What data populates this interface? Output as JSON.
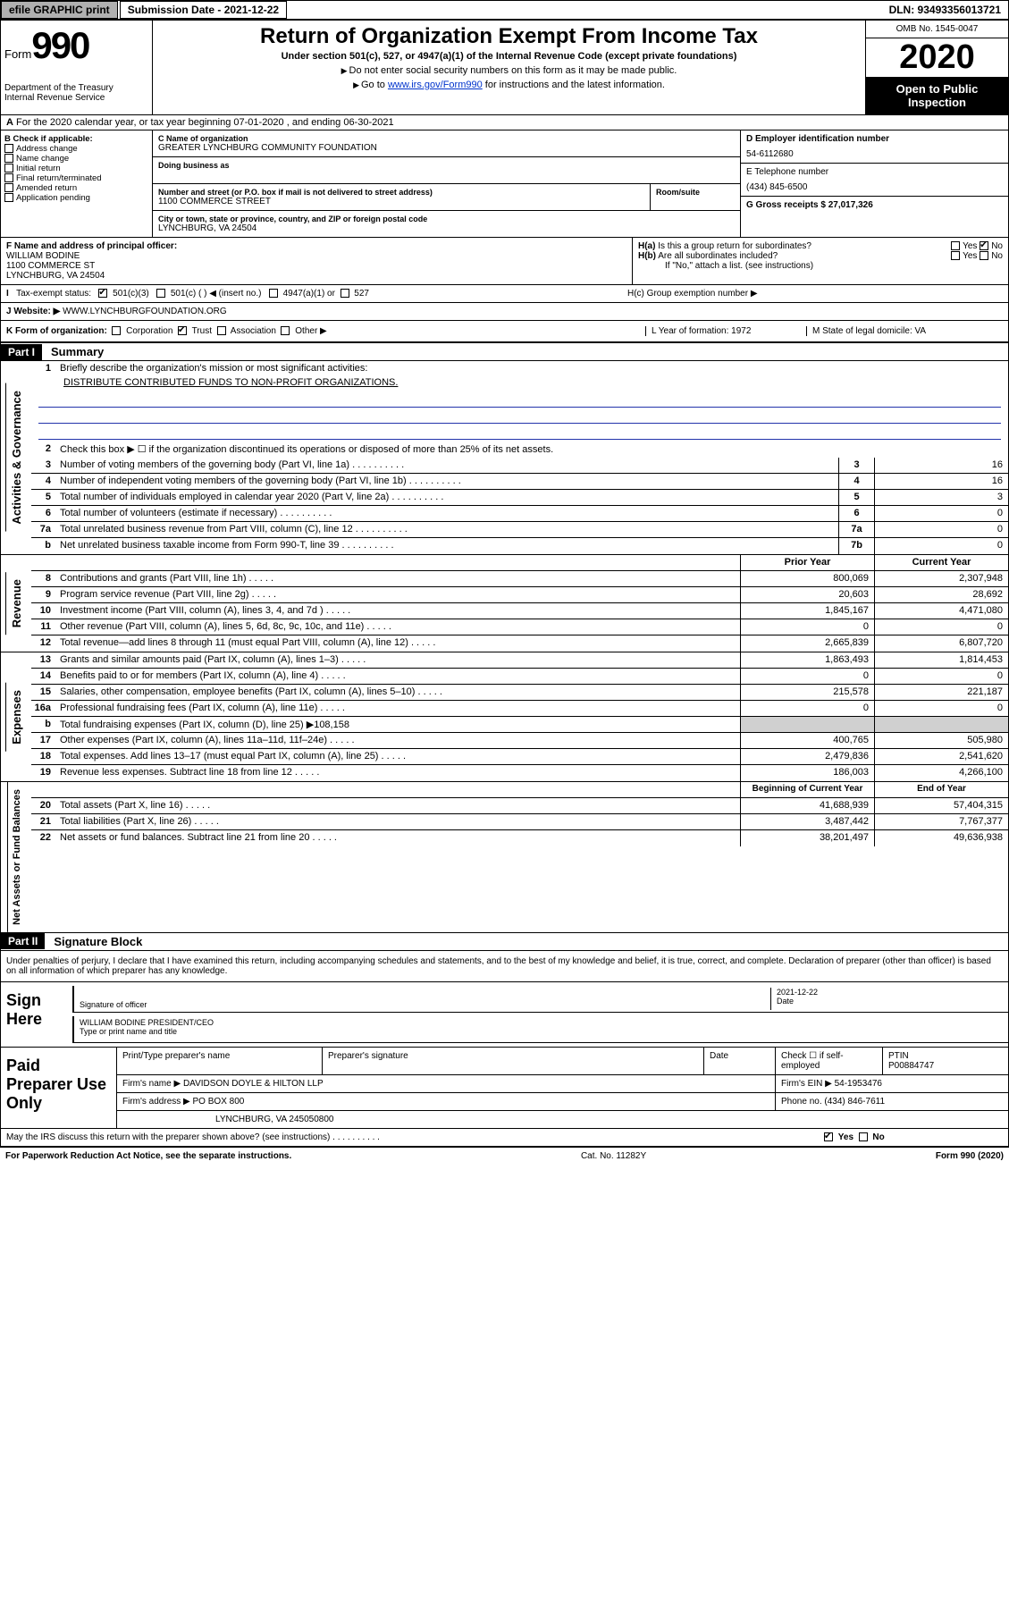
{
  "topbar": {
    "efile": "efile GRAPHIC print",
    "sub_label": "Submission Date - 2021-12-22",
    "dln": "DLN: 93493356013721"
  },
  "header": {
    "form": "Form",
    "num": "990",
    "title": "Return of Organization Exempt From Income Tax",
    "sub1": "Under section 501(c), 527, or 4947(a)(1) of the Internal Revenue Code (except private foundations)",
    "sub2": "Do not enter social security numbers on this form as it may be made public.",
    "sub3": "Go to www.irs.gov/Form990 for instructions and the latest information.",
    "link": "www.irs.gov/Form990",
    "omb": "OMB No. 1545-0047",
    "year": "2020",
    "open": "Open to Public Inspection",
    "dept1": "Department of the Treasury",
    "dept2": "Internal Revenue Service"
  },
  "rowA": {
    "text": "For the 2020 calendar year, or tax year beginning 07-01-2020     , and ending 06-30-2021",
    "prefix": "A"
  },
  "colB": {
    "hdr": "B Check if applicable:",
    "items": [
      "Address change",
      "Name change",
      "Initial return",
      "Final return/terminated",
      "Amended return",
      "Application pending"
    ]
  },
  "colC": {
    "name_label": "C Name of organization",
    "name": "GREATER LYNCHBURG COMMUNITY FOUNDATION",
    "dba_label": "Doing business as",
    "street_label": "Number and street (or P.O. box if mail is not delivered to street address)",
    "room_label": "Room/suite",
    "street": "1100 COMMERCE STREET",
    "city_label": "City or town, state or province, country, and ZIP or foreign postal code",
    "city": "LYNCHBURG, VA  24504"
  },
  "colD": {
    "d_label": "D Employer identification number",
    "ein": "54-6112680",
    "e_label": "E Telephone number",
    "phone": "(434) 845-6500",
    "g_label": "G Gross receipts $ 27,017,326"
  },
  "rowF": {
    "f_label": "F  Name and address of principal officer:",
    "f_name": "WILLIAM BODINE",
    "f_addr1": "1100 COMMERCE ST",
    "f_addr2": "LYNCHBURG, VA  24504",
    "h_a": "H(a)  Is this a group return for subordinates?",
    "h_b": "H(b)  Are all subordinates included?",
    "h_note": "If \"No,\" attach a list. (see instructions)",
    "yes": "Yes",
    "no": "No"
  },
  "rowI": {
    "label": "I   Tax-exempt status:",
    "opt1": "501(c)(3)",
    "opt2": "501(c) (   ) ◀ (insert no.)",
    "opt3": "4947(a)(1) or",
    "opt4": "527",
    "hc": "H(c)   Group exemption number ▶"
  },
  "rowJ": {
    "label": "J    Website: ▶",
    "site": "WWW.LYNCHBURGFOUNDATION.ORG"
  },
  "rowK": {
    "k_label": "K Form of organization:",
    "opts": [
      "Corporation",
      "Trust",
      "Association",
      "Other ▶"
    ],
    "l": "L Year of formation: 1972",
    "m": "M State of legal domicile: VA"
  },
  "part1": {
    "hdr": "Part I",
    "label": "Summary",
    "vlabel_gov": "Activities & Governance",
    "vlabel_rev": "Revenue",
    "vlabel_exp": "Expenses",
    "vlabel_net": "Net Assets or Fund Balances",
    "line1": "Briefly describe the organization's mission or most significant activities:",
    "mission": "DISTRIBUTE CONTRIBUTED FUNDS TO NON-PROFIT ORGANIZATIONS.",
    "line2": "Check this box ▶ ☐  if the organization discontinued its operations or disposed of more than 25% of its net assets.",
    "lines_gov": [
      {
        "n": "3",
        "t": "Number of voting members of the governing body (Part VI, line 1a)",
        "b": "3",
        "v": "16"
      },
      {
        "n": "4",
        "t": "Number of independent voting members of the governing body (Part VI, line 1b)",
        "b": "4",
        "v": "16"
      },
      {
        "n": "5",
        "t": "Total number of individuals employed in calendar year 2020 (Part V, line 2a)",
        "b": "5",
        "v": "3"
      },
      {
        "n": "6",
        "t": "Total number of volunteers (estimate if necessary)",
        "b": "6",
        "v": "0"
      },
      {
        "n": "7a",
        "t": "Total unrelated business revenue from Part VIII, column (C), line 12",
        "b": "7a",
        "v": "0"
      },
      {
        "n": "b",
        "t": "Net unrelated business taxable income from Form 990-T, line 39",
        "b": "7b",
        "v": "0"
      }
    ],
    "col_prior": "Prior Year",
    "col_current": "Current Year",
    "lines_rev": [
      {
        "n": "8",
        "t": "Contributions and grants (Part VIII, line 1h)",
        "p": "800,069",
        "c": "2,307,948"
      },
      {
        "n": "9",
        "t": "Program service revenue (Part VIII, line 2g)",
        "p": "20,603",
        "c": "28,692"
      },
      {
        "n": "10",
        "t": "Investment income (Part VIII, column (A), lines 3, 4, and 7d )",
        "p": "1,845,167",
        "c": "4,471,080"
      },
      {
        "n": "11",
        "t": "Other revenue (Part VIII, column (A), lines 5, 6d, 8c, 9c, 10c, and 11e)",
        "p": "0",
        "c": "0"
      },
      {
        "n": "12",
        "t": "Total revenue—add lines 8 through 11 (must equal Part VIII, column (A), line 12)",
        "p": "2,665,839",
        "c": "6,807,720"
      }
    ],
    "lines_exp": [
      {
        "n": "13",
        "t": "Grants and similar amounts paid (Part IX, column (A), lines 1–3)",
        "p": "1,863,493",
        "c": "1,814,453"
      },
      {
        "n": "14",
        "t": "Benefits paid to or for members (Part IX, column (A), line 4)",
        "p": "0",
        "c": "0"
      },
      {
        "n": "15",
        "t": "Salaries, other compensation, employee benefits (Part IX, column (A), lines 5–10)",
        "p": "215,578",
        "c": "221,187"
      },
      {
        "n": "16a",
        "t": "Professional fundraising fees (Part IX, column (A), line 11e)",
        "p": "0",
        "c": "0"
      },
      {
        "n": "b",
        "t": "Total fundraising expenses (Part IX, column (D), line 25) ▶108,158",
        "p": "",
        "c": "",
        "grey": true
      },
      {
        "n": "17",
        "t": "Other expenses (Part IX, column (A), lines 11a–11d, 11f–24e)",
        "p": "400,765",
        "c": "505,980"
      },
      {
        "n": "18",
        "t": "Total expenses. Add lines 13–17 (must equal Part IX, column (A), line 25)",
        "p": "2,479,836",
        "c": "2,541,620"
      },
      {
        "n": "19",
        "t": "Revenue less expenses. Subtract line 18 from line 12",
        "p": "186,003",
        "c": "4,266,100"
      }
    ],
    "col_begin": "Beginning of Current Year",
    "col_end": "End of Year",
    "lines_net": [
      {
        "n": "20",
        "t": "Total assets (Part X, line 16)",
        "p": "41,688,939",
        "c": "57,404,315"
      },
      {
        "n": "21",
        "t": "Total liabilities (Part X, line 26)",
        "p": "3,487,442",
        "c": "7,767,377"
      },
      {
        "n": "22",
        "t": "Net assets or fund balances. Subtract line 21 from line 20",
        "p": "38,201,497",
        "c": "49,636,938"
      }
    ]
  },
  "part2": {
    "hdr": "Part II",
    "label": "Signature Block",
    "decl": "Under penalties of perjury, I declare that I have examined this return, including accompanying schedules and statements, and to the best of my knowledge and belief, it is true, correct, and complete. Declaration of preparer (other than officer) is based on all information of which preparer has any knowledge."
  },
  "sign": {
    "here": "Sign Here",
    "sig_label": "Signature of officer",
    "date_label": "Date",
    "date": "2021-12-22",
    "name": "WILLIAM BODINE  PRESIDENT/CEO",
    "name_label": "Type or print name and title"
  },
  "paid": {
    "label": "Paid Preparer Use Only",
    "r1": {
      "c1": "Print/Type preparer's name",
      "c2": "Preparer's signature",
      "c3": "Date",
      "c4": "Check ☐ if self-employed",
      "c5": "PTIN",
      "c5v": "P00884747"
    },
    "r2": {
      "c1": "Firm's name    ▶",
      "c1v": "DAVIDSON DOYLE & HILTON LLP",
      "c2": "Firm's EIN ▶ 54-1953476"
    },
    "r3": {
      "c1": "Firm's address ▶",
      "c1v": "PO BOX 800",
      "c2": "Phone no. (434) 846-7611"
    },
    "r4": {
      "c1": "LYNCHBURG, VA  245050800"
    }
  },
  "discuss": {
    "text": "May the IRS discuss this return with the preparer shown above? (see instructions)",
    "yes": "Yes",
    "no": "No"
  },
  "footer": {
    "left": "For Paperwork Reduction Act Notice, see the separate instructions.",
    "mid": "Cat. No. 11282Y",
    "right": "Form 990 (2020)"
  }
}
